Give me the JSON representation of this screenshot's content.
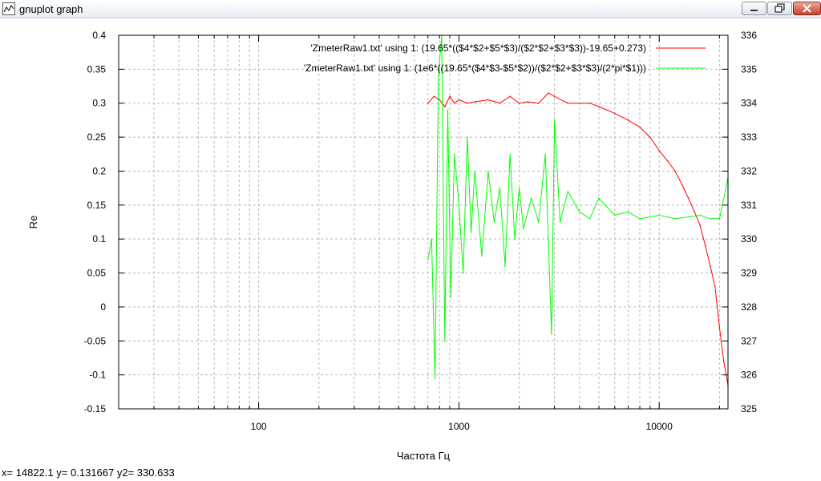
{
  "window": {
    "title": "gnuplot graph",
    "icon": "gnuplot-app-icon",
    "controls": [
      "minimize-icon",
      "maximize-icon",
      "close-icon"
    ]
  },
  "status": {
    "coords": "x= 14822.1 y= 0.131667 y2= 330.633"
  },
  "colors": {
    "series_red": "#ff0000",
    "series_green": "#00ff00",
    "grid": "#b8b8b8"
  },
  "chart_data": {
    "type": "line",
    "title": "",
    "xlabel": "Частота Гц",
    "ylabel": "Re",
    "y2label": "",
    "x_scale": "log",
    "xlim": [
      20,
      22050
    ],
    "ylim": [
      -0.15,
      0.4
    ],
    "y2lim": [
      325,
      336
    ],
    "grid": true,
    "legend_position": "top-right",
    "x_ticks": [
      "100",
      "1000",
      "10000"
    ],
    "y_ticks": [
      "-0.15",
      "-0.1",
      "-0.05",
      "0",
      "0.05",
      "0.1",
      "0.15",
      "0.2",
      "0.25",
      "0.3",
      "0.35",
      "0.4"
    ],
    "y2_ticks": [
      "325",
      "326",
      "327",
      "328",
      "329",
      "330",
      "331",
      "332",
      "333",
      "334",
      "335",
      "336"
    ],
    "series": [
      {
        "name": "'ZmeterRaw1.txt' using 1: (19.65*(($4*$2+$5*$3)/($2*$2+$3*$3))-19.65+0.273)",
        "axis": "y",
        "color": "#ff0000",
        "x": [
          700,
          750,
          800,
          850,
          900,
          950,
          1000,
          1100,
          1200,
          1400,
          1600,
          1800,
          2000,
          2200,
          2500,
          2800,
          3000,
          3500,
          4000,
          4500,
          5000,
          6000,
          7000,
          8000,
          9000,
          10000,
          11000,
          12000,
          13000,
          14000,
          15000,
          16000,
          17000,
          18000,
          19000,
          20000,
          21000,
          22050
        ],
        "y": [
          0.3,
          0.31,
          0.305,
          0.295,
          0.31,
          0.3,
          0.305,
          0.3,
          0.302,
          0.305,
          0.3,
          0.31,
          0.3,
          0.302,
          0.3,
          0.315,
          0.31,
          0.3,
          0.3,
          0.3,
          0.295,
          0.285,
          0.275,
          0.265,
          0.25,
          0.23,
          0.215,
          0.2,
          0.18,
          0.16,
          0.14,
          0.12,
          0.09,
          0.06,
          0.03,
          -0.03,
          -0.08,
          -0.115
        ]
      },
      {
        "name": "'ZmeterRaw1.txt' using 1: (1e6*((19.65*($4*$3-$5*$2))/($2*$2+$3*$3)/(2*pi*$1)))",
        "axis": "y2",
        "color": "#00ff00",
        "x": [
          700,
          730,
          760,
          790,
          820,
          850,
          880,
          910,
          950,
          1000,
          1050,
          1100,
          1150,
          1200,
          1300,
          1400,
          1500,
          1600,
          1700,
          1800,
          1900,
          2000,
          2100,
          2300,
          2500,
          2700,
          2900,
          3000,
          3200,
          3500,
          4000,
          4500,
          5000,
          6000,
          7000,
          8000,
          10000,
          12000,
          14000,
          16000,
          18000,
          20000,
          22050
        ],
        "y": [
          329.4,
          330,
          325.9,
          334.8,
          336,
          327,
          333.8,
          328.3,
          332.5,
          331,
          329,
          333,
          330.2,
          332,
          329.5,
          332,
          330.5,
          331.5,
          329.2,
          332.5,
          330,
          331.5,
          330.3,
          331.2,
          330.5,
          332.5,
          327.2,
          333.5,
          330.5,
          331.4,
          330.8,
          330.6,
          331.2,
          330.7,
          330.8,
          330.6,
          330.7,
          330.6,
          330.65,
          330.7,
          330.6,
          330.6,
          331.8
        ]
      }
    ]
  }
}
